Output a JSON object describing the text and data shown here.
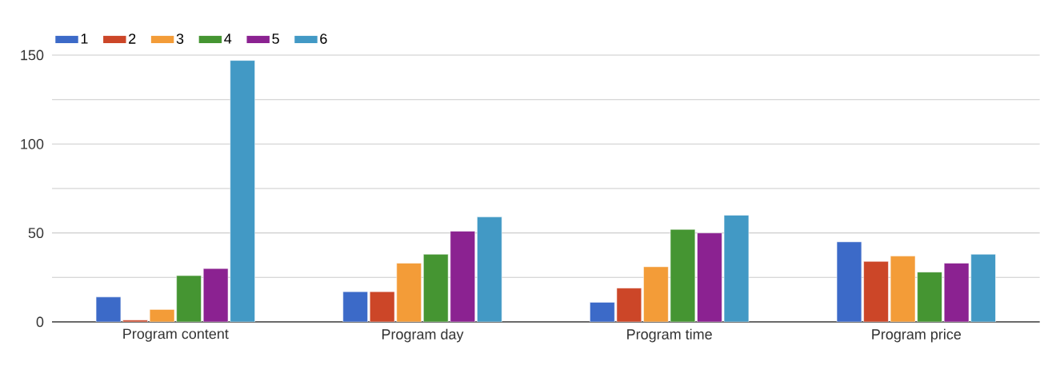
{
  "chart_data": {
    "type": "bar",
    "categories": [
      "Program content",
      "Program day",
      "Program time",
      "Program price"
    ],
    "series": [
      {
        "name": "1",
        "color": "#3c6ac8",
        "values": [
          14,
          17,
          11,
          45
        ]
      },
      {
        "name": "2",
        "color": "#cc4628",
        "values": [
          1,
          17,
          19,
          34
        ]
      },
      {
        "name": "3",
        "color": "#f39c38",
        "values": [
          7,
          33,
          31,
          37
        ]
      },
      {
        "name": "4",
        "color": "#459532",
        "values": [
          26,
          38,
          52,
          28
        ]
      },
      {
        "name": "5",
        "color": "#8b2291",
        "values": [
          30,
          51,
          50,
          33
        ]
      },
      {
        "name": "6",
        "color": "#4299c5",
        "values": [
          147,
          59,
          60,
          38
        ]
      }
    ],
    "ylim": [
      0,
      150
    ],
    "yticks": [
      0,
      {
        "value": 25,
        "label": null
      },
      50,
      {
        "value": 75,
        "label": null
      },
      100,
      {
        "value": 125,
        "label": null
      },
      150
    ],
    "grid": "y",
    "legend": "top left"
  }
}
